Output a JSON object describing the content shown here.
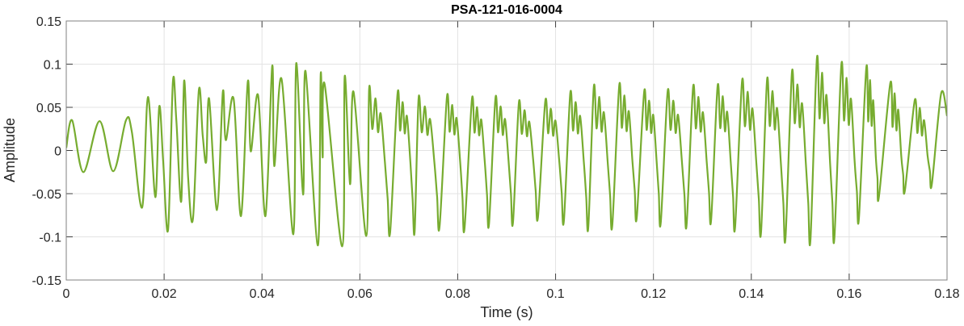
{
  "chart_data": {
    "type": "line",
    "title": "PSA-121-016-0004",
    "xlabel": "Time (s)",
    "ylabel": "Amplitude",
    "xlim": [
      0,
      0.18
    ],
    "ylim": [
      -0.15,
      0.15
    ],
    "xticks": [
      0,
      0.02,
      0.04,
      0.06,
      0.08,
      0.1,
      0.12,
      0.14,
      0.16,
      0.18
    ],
    "xtick_labels": [
      "0",
      "0.02",
      "0.04",
      "0.06",
      "0.08",
      "0.1",
      "0.12",
      "0.14",
      "0.16",
      "0.18"
    ],
    "yticks": [
      -0.15,
      -0.1,
      -0.05,
      0,
      0.05,
      0.1,
      0.15
    ],
    "ytick_labels": [
      "-0.15",
      "-0.1",
      "-0.05",
      "0",
      "0.05",
      "0.1",
      "0.15"
    ],
    "grid": true,
    "line_color": "#77AC30",
    "series": [
      {
        "name": "PSA-121-016-0004",
        "onset_points": {
          "t": [
            0,
            0.0012,
            0.0035,
            0.0068,
            0.0096,
            0.0122,
            0.0134,
            0.0155,
            0.0167,
            0.0182,
            0.019,
            0.0198,
            0.0208,
            0.0218,
            0.0225,
            0.0235,
            0.0241,
            0.0249,
            0.0259,
            0.0271,
            0.0279,
            0.0286,
            0.0292,
            0.0308,
            0.032,
            0.0326,
            0.0342,
            0.0357,
            0.0371,
            0.0377,
            0.0392,
            0.0407,
            0.0421,
            0.0425,
            0.044,
            0.0464,
            0.047,
            0.0484,
            0.0489,
            0.0514,
            0.052,
            0.0524,
            0.0528,
            0.0564,
            0.0569,
            0.058,
            0.0587,
            0.0613
          ],
          "y": [
            0.003,
            0.035,
            -0.025,
            0.034,
            -0.024,
            0.035,
            0.022,
            -0.066,
            0.062,
            -0.054,
            0.051,
            -0.012,
            -0.092,
            0.08,
            0.034,
            -0.059,
            0.081,
            -0.031,
            -0.079,
            0.07,
            0.017,
            -0.013,
            0.06,
            -0.069,
            0.068,
            0.012,
            0.06,
            -0.076,
            0.08,
            -0.001,
            0.064,
            -0.076,
            0.098,
            -0.018,
            0.083,
            -0.097,
            0.101,
            -0.051,
            0.092,
            -0.11,
            0.089,
            -0.008,
            0.077,
            -0.111,
            0.086,
            -0.039,
            0.068,
            -0.099
          ]
        },
        "cycles": [
          {
            "t_min": 0.0613,
            "min": -0.099,
            "t_max": 0.0619,
            "max": 0.071
          },
          {
            "t_min": 0.0662,
            "min": -0.094,
            "t_max": 0.0677,
            "max": 0.066
          },
          {
            "t_min": 0.0712,
            "min": -0.093,
            "t_max": 0.072,
            "max": 0.06
          },
          {
            "t_min": 0.0763,
            "min": -0.088,
            "t_max": 0.0778,
            "max": 0.062
          },
          {
            "t_min": 0.0814,
            "min": -0.09,
            "t_max": 0.0829,
            "max": 0.059
          },
          {
            "t_min": 0.0864,
            "min": -0.085,
            "t_max": 0.0877,
            "max": 0.06
          },
          {
            "t_min": 0.0913,
            "min": -0.083,
            "t_max": 0.0925,
            "max": 0.055
          },
          {
            "t_min": 0.0964,
            "min": -0.077,
            "t_max": 0.0979,
            "max": 0.057
          },
          {
            "t_min": 0.1017,
            "min": -0.081,
            "t_max": 0.103,
            "max": 0.066
          },
          {
            "t_min": 0.1067,
            "min": -0.088,
            "t_max": 0.1078,
            "max": 0.073
          },
          {
            "t_min": 0.1116,
            "min": -0.086,
            "t_max": 0.113,
            "max": 0.075
          },
          {
            "t_min": 0.1166,
            "min": -0.077,
            "t_max": 0.1181,
            "max": 0.068
          },
          {
            "t_min": 0.1215,
            "min": -0.083,
            "t_max": 0.1229,
            "max": 0.068
          },
          {
            "t_min": 0.1268,
            "min": -0.085,
            "t_max": 0.1281,
            "max": 0.073
          },
          {
            "t_min": 0.1318,
            "min": -0.08,
            "t_max": 0.1331,
            "max": 0.074
          },
          {
            "t_min": 0.1367,
            "min": -0.088,
            "t_max": 0.1381,
            "max": 0.08
          },
          {
            "t_min": 0.142,
            "min": -0.094,
            "t_max": 0.1432,
            "max": 0.081
          },
          {
            "t_min": 0.147,
            "min": -0.1,
            "t_max": 0.1483,
            "max": 0.09
          },
          {
            "t_min": 0.1521,
            "min": -0.102,
            "t_max": 0.1534,
            "max": 0.106
          },
          {
            "t_min": 0.157,
            "min": -0.1,
            "t_max": 0.1584,
            "max": 0.099
          },
          {
            "t_min": 0.162,
            "min": -0.078,
            "t_max": 0.1635,
            "max": 0.096
          },
          {
            "t_min": 0.1661,
            "min": -0.053,
            "t_max": 0.1684,
            "max": 0.078
          },
          {
            "t_min": 0.1714,
            "min": -0.046,
            "t_max": 0.1734,
            "max": 0.058
          },
          {
            "t_min": 0.1769,
            "min": -0.039,
            "t_max": 0.1788,
            "max": 0.066
          }
        ],
        "end_point": {
          "t": 0.18,
          "y": 0.04
        }
      }
    ]
  }
}
